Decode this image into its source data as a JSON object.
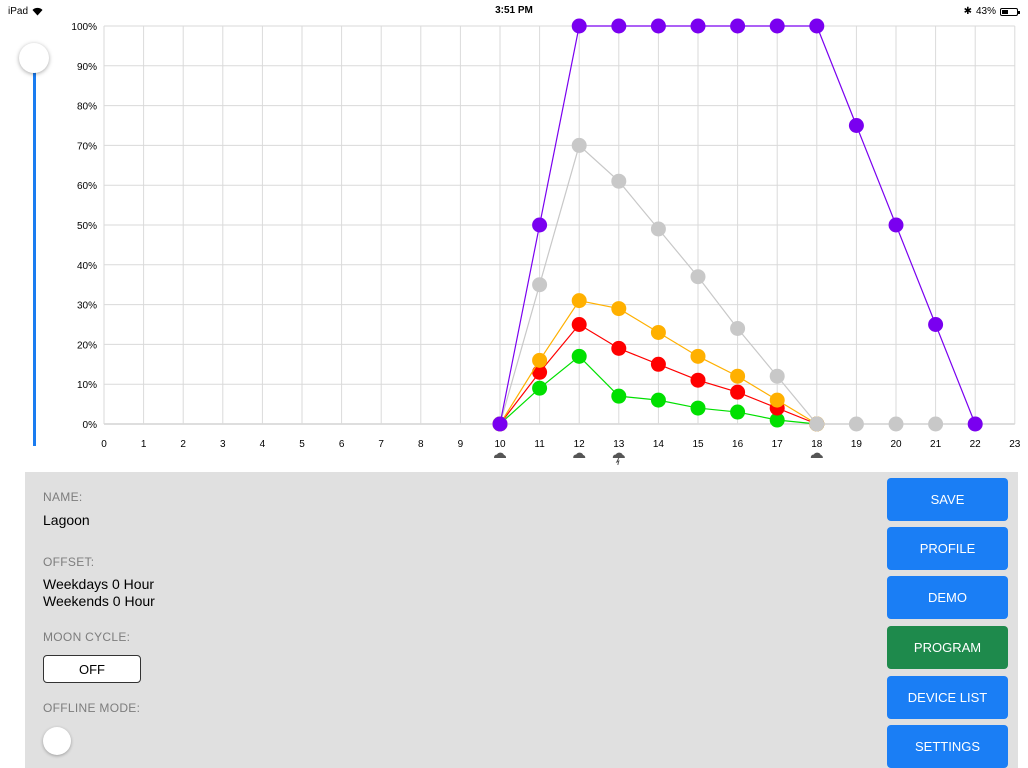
{
  "status_bar": {
    "device": "iPad",
    "time": "3:51 PM",
    "battery": "43%",
    "battery_level": 0.43
  },
  "brightness_slider": {
    "value": 1.0
  },
  "chart_data": {
    "type": "line",
    "x": [
      10,
      11,
      12,
      13,
      14,
      15,
      16,
      17,
      18,
      19,
      20,
      21,
      22
    ],
    "xlim": [
      0,
      23
    ],
    "ylim": [
      0,
      100
    ],
    "x_ticks": [
      "0",
      "1",
      "2",
      "3",
      "4",
      "5",
      "6",
      "7",
      "8",
      "9",
      "10",
      "11",
      "12",
      "13",
      "14",
      "15",
      "16",
      "17",
      "18",
      "19",
      "20",
      "21",
      "22",
      "23"
    ],
    "y_ticks": [
      "0%",
      "10%",
      "20%",
      "30%",
      "40%",
      "50%",
      "60%",
      "70%",
      "80%",
      "90%",
      "100%"
    ],
    "grid": true,
    "weather_icons": [
      {
        "x": 10,
        "icon": "cloud-icon"
      },
      {
        "x": 12,
        "icon": "cloud-icon"
      },
      {
        "x": 13,
        "icon": "storm-icon"
      },
      {
        "x": 18,
        "icon": "cloud-icon"
      }
    ],
    "series": [
      {
        "color": "#7a00f0",
        "values": [
          0,
          50,
          100,
          100,
          100,
          100,
          100,
          100,
          100,
          75,
          50,
          25,
          0
        ]
      },
      {
        "color": "#c8c8c8",
        "values": [
          0,
          35,
          70,
          61,
          49,
          37,
          24,
          12,
          0,
          0,
          0,
          0,
          0
        ]
      },
      {
        "color": "#ffb000",
        "values": [
          0,
          16,
          31,
          29,
          23,
          17,
          12,
          6,
          0,
          null,
          null,
          null,
          null
        ]
      },
      {
        "color": "#ff0000",
        "values": [
          0,
          13,
          25,
          19,
          15,
          11,
          8,
          4,
          0,
          null,
          null,
          null,
          null
        ]
      },
      {
        "color": "#00e000",
        "values": [
          0,
          9,
          17,
          7,
          6,
          4,
          3,
          1,
          0,
          null,
          null,
          null,
          null
        ]
      }
    ]
  },
  "panel": {
    "name_label": "NAME:",
    "name_value": "Lagoon",
    "offset_label": "OFFSET:",
    "offset_weekdays": "Weekdays 0 Hour",
    "offset_weekends": "Weekends 0 Hour",
    "moon_label": "MOON CYCLE:",
    "moon_button": "OFF",
    "offline_label": "OFFLINE MODE:",
    "offline_value": "off"
  },
  "buttons": {
    "save": "SAVE",
    "profile": "PROFILE",
    "demo": "DEMO",
    "program": "PROGRAM",
    "device_list": "DEVICE LIST",
    "settings": "SETTINGS",
    "active_color": "#1e8a4c",
    "default_color": "#1a7ef5"
  }
}
